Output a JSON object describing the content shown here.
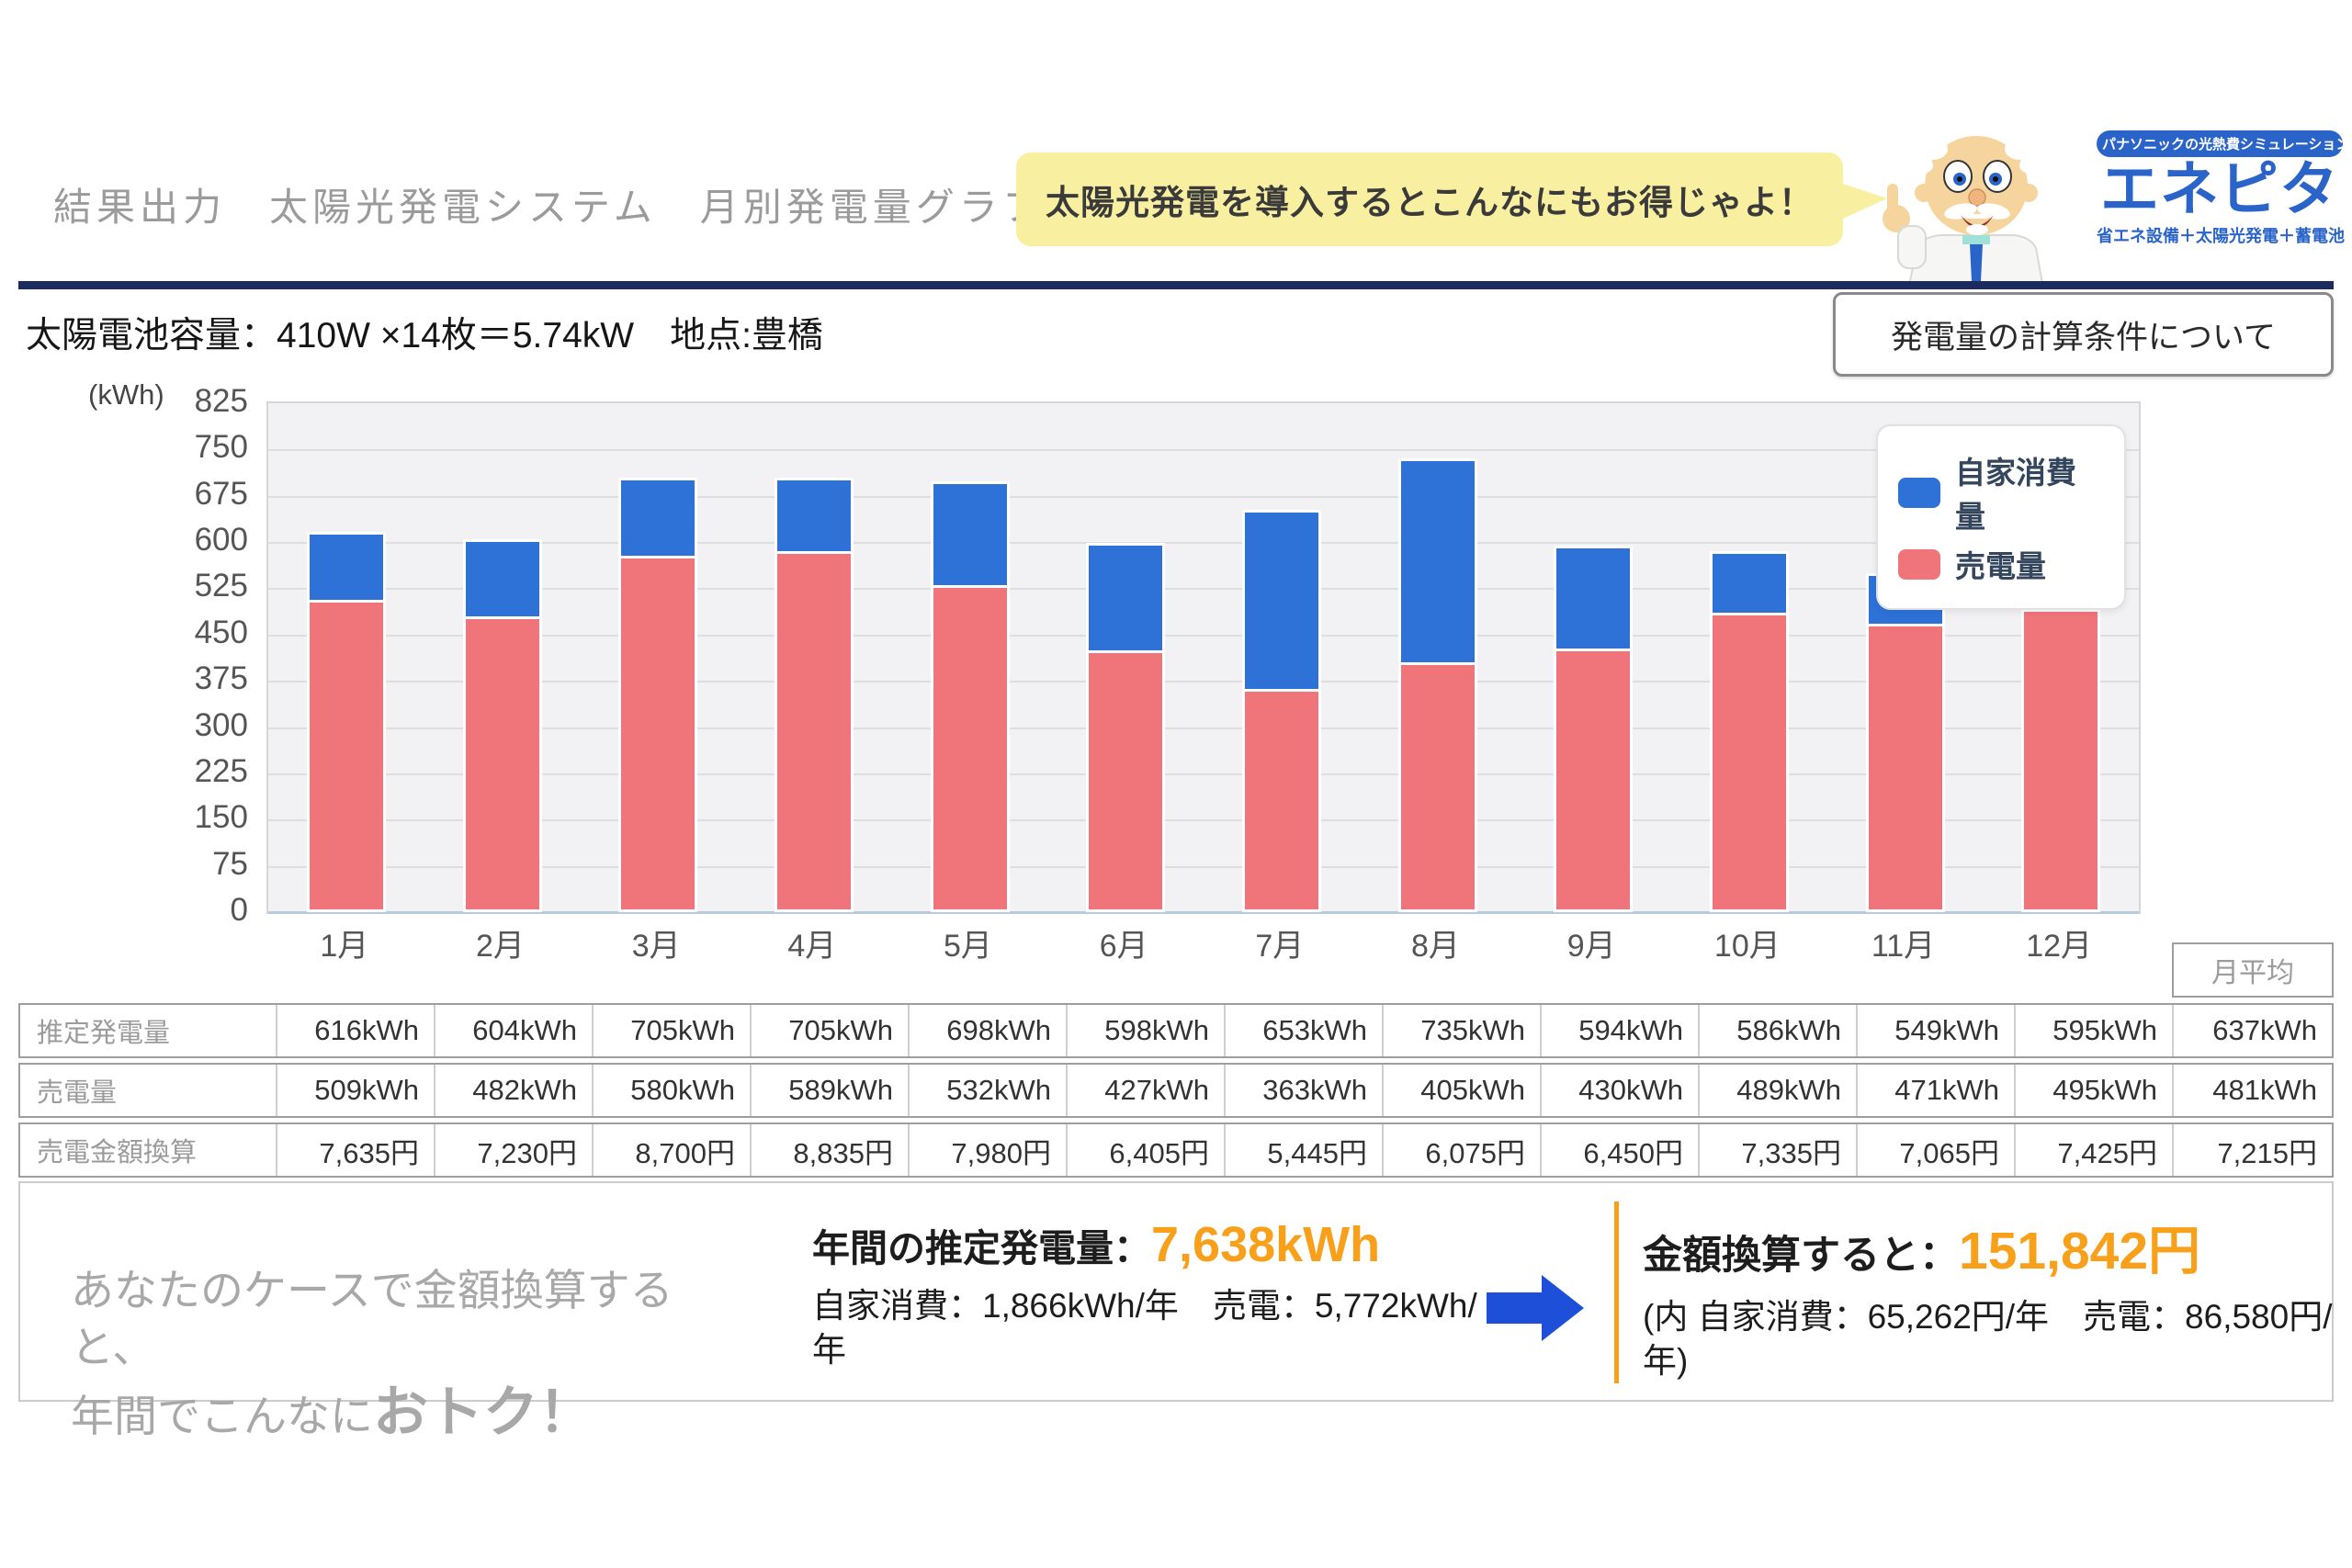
{
  "header": {
    "breadcrumb": "結果出力　太陽光発電システム　月別発電量グラフ"
  },
  "bubble": {
    "text": "太陽光発電を導入するとこんなにもお得じゃよ！"
  },
  "logo": {
    "tagline_top": "パナソニックの光熱費シミュレーション",
    "name": "エネピタ",
    "tagline_bottom": "省エネ設備＋太陽光発電＋蓄電池"
  },
  "title": {
    "text": "太陽電池容量：410W ×14枚＝5.74kW　地点:豊橋"
  },
  "calc_button": {
    "label": "発電量の計算条件について"
  },
  "chart_data": {
    "type": "bar",
    "stacked": true,
    "ylabel": "(kWh)",
    "ylim": [
      0,
      825
    ],
    "ytick_step": 75,
    "grid": true,
    "legend_position": "top-right",
    "categories": [
      "1月",
      "2月",
      "3月",
      "4月",
      "5月",
      "6月",
      "7月",
      "8月",
      "9月",
      "10月",
      "11月",
      "12月"
    ],
    "series": [
      {
        "name": "自家消費量",
        "color": "#2e72d8",
        "values": [
          107,
          122,
          125,
          116,
          166,
          171,
          290,
          330,
          164,
          97,
          78,
          100
        ]
      },
      {
        "name": "売電量",
        "color": "#ef757a",
        "values": [
          509,
          482,
          580,
          589,
          532,
          427,
          363,
          405,
          430,
          489,
          471,
          495
        ]
      }
    ],
    "totals": [
      616,
      604,
      705,
      705,
      698,
      598,
      653,
      735,
      594,
      586,
      549,
      595
    ]
  },
  "table": {
    "avg_header": "月平均",
    "rows": [
      {
        "label": "推定発電量",
        "values": [
          "616kWh",
          "604kWh",
          "705kWh",
          "705kWh",
          "698kWh",
          "598kWh",
          "653kWh",
          "735kWh",
          "594kWh",
          "586kWh",
          "549kWh",
          "595kWh"
        ],
        "avg": "637kWh"
      },
      {
        "label": "売電量",
        "values": [
          "509kWh",
          "482kWh",
          "580kWh",
          "589kWh",
          "532kWh",
          "427kWh",
          "363kWh",
          "405kWh",
          "430kWh",
          "489kWh",
          "471kWh",
          "495kWh"
        ],
        "avg": "481kWh"
      },
      {
        "label": "売電金額換算",
        "values": [
          "7,635円",
          "7,230円",
          "8,700円",
          "8,835円",
          "7,980円",
          "6,405円",
          "5,445円",
          "6,075円",
          "6,450円",
          "7,335円",
          "7,065円",
          "7,425円"
        ],
        "avg": "7,215円"
      }
    ]
  },
  "summary": {
    "left_note": "あなたのケースで金額換算する\nと、\n年間でこんなに",
    "left_note_emphasis": "おトク！",
    "annual_label": "年間の推定発電量：",
    "annual_value": "7,638kWh",
    "annual_detail": "自家消費：1,866kWh/年　売電：5,772kWh/\n年",
    "money_label": "金額換算すると：",
    "money_value": "151,842円",
    "money_detail": "(内 自家消費：65,262円/年　売電：86,580円/\n年)",
    "accent_orange": "#f9a01b",
    "arrow_blue": "#1d4fd8"
  }
}
